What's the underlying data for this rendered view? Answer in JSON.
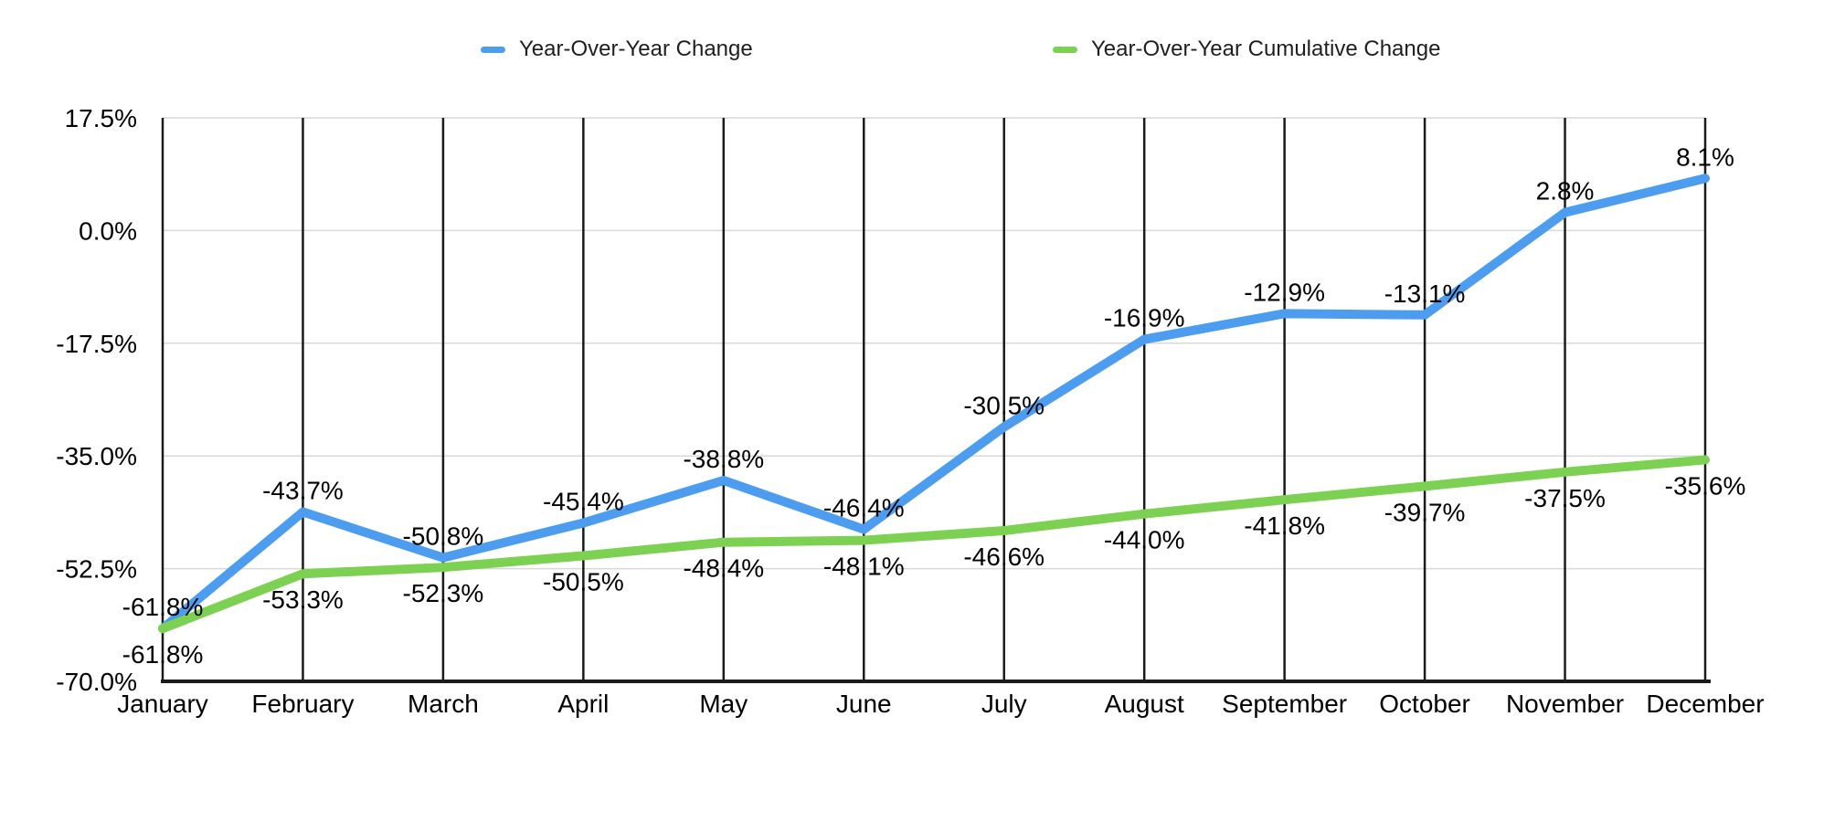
{
  "chart_data": {
    "type": "line",
    "title": "",
    "categories": [
      "January",
      "February",
      "March",
      "April",
      "May",
      "June",
      "July",
      "August",
      "September",
      "October",
      "November",
      "December"
    ],
    "series": [
      {
        "name": "Year-Over-Year Change",
        "color": "#4C9CEF",
        "label_position": "above",
        "values": [
          -61.8,
          -43.7,
          -50.8,
          -45.4,
          -38.8,
          -46.4,
          -30.5,
          -16.9,
          -12.9,
          -13.1,
          2.8,
          8.1
        ],
        "labels": [
          "-61.8%",
          "-43.7%",
          "-50.8%",
          "-45.4%",
          "-38.8%",
          "-46.4%",
          "-30.5%",
          "-16.9%",
          "-12.9%",
          "-13.1%",
          "2.8%",
          "8.1%"
        ]
      },
      {
        "name": "Year-Over-Year Cumulative Change",
        "color": "#7DD152",
        "label_position": "below",
        "values": [
          -61.8,
          -53.3,
          -52.3,
          -50.5,
          -48.4,
          -48.1,
          -46.6,
          -44.0,
          -41.8,
          -39.7,
          -37.5,
          -35.6
        ],
        "labels": [
          "-61.8%",
          "-53.3%",
          "-52.3%",
          "-50.5%",
          "-48.4%",
          "-48.1%",
          "-46.6%",
          "-44.0%",
          "-41.8%",
          "-39.7%",
          "-37.5%",
          "-35.6%"
        ]
      }
    ],
    "y_axis": {
      "min": -70,
      "max": 17.5,
      "ticks": [
        {
          "value": 17.5,
          "label": "17.5%"
        },
        {
          "value": 0,
          "label": "0.0%"
        },
        {
          "value": -17.5,
          "label": "-17.5%"
        },
        {
          "value": -35,
          "label": "-35.0%"
        },
        {
          "value": -52.5,
          "label": "-52.5%"
        },
        {
          "value": -70,
          "label": "-70.0%"
        }
      ]
    },
    "legend_position": "top",
    "grid": {
      "horizontal": true,
      "vertical": true
    },
    "colors": {
      "grid": "#D9D9D9",
      "axis": "#1B1B1B",
      "label_text": "#000000",
      "legend_text": "#1F1F1F"
    }
  }
}
